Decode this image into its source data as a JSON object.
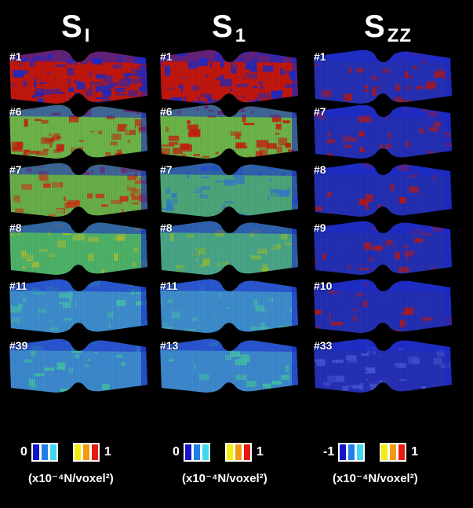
{
  "columns": [
    {
      "title_main": "S",
      "title_sub": "I",
      "slabs": [
        {
          "label": "#1",
          "base": "#c4170e",
          "accent": "#1d2bc8",
          "mix": 0.9
        },
        {
          "label": "#6",
          "base": "#6fb84a",
          "accent": "#c91b0f",
          "mix": 0.55
        },
        {
          "label": "#7",
          "base": "#6bb24b",
          "accent": "#cc3412",
          "mix": 0.45
        },
        {
          "label": "#8",
          "base": "#4fb56a",
          "accent": "#b6c330",
          "mix": 0.35
        },
        {
          "label": "#11",
          "base": "#3f8fd0",
          "accent": "#45c0b0",
          "mix": 0.3
        },
        {
          "label": "#39",
          "base": "#3e8bd1",
          "accent": "#43c3a8",
          "mix": 0.3
        }
      ],
      "legend": {
        "min": "0",
        "max": "1"
      },
      "units": "(x10⁻⁴N/voxel²)"
    },
    {
      "title_main": "S",
      "title_sub": "1",
      "slabs": [
        {
          "label": "#1",
          "base": "#c4170e",
          "accent": "#1d2bc8",
          "mix": 0.9
        },
        {
          "label": "#6",
          "base": "#6fb84a",
          "accent": "#c91b0f",
          "mix": 0.5
        },
        {
          "label": "#7",
          "base": "#4fa97b",
          "accent": "#2f78d6",
          "mix": 0.45
        },
        {
          "label": "#8",
          "base": "#4aa88a",
          "accent": "#8fbe3a",
          "mix": 0.35
        },
        {
          "label": "#11",
          "base": "#3f8fd0",
          "accent": "#45c0b0",
          "mix": 0.3
        },
        {
          "label": "#13",
          "base": "#3e8bd1",
          "accent": "#43c3a8",
          "mix": 0.3
        }
      ],
      "legend": {
        "min": "0",
        "max": "1"
      },
      "units": "(x10⁻⁴N/voxel²)"
    },
    {
      "title_main": "S",
      "title_sub": "ZZ",
      "slabs": [
        {
          "label": "#1",
          "base": "#2631b8",
          "accent": "#b41818",
          "mix": 0.35
        },
        {
          "label": "#7",
          "base": "#2530b8",
          "accent": "#b81a1a",
          "mix": 0.3
        },
        {
          "label": "#8",
          "base": "#2430b6",
          "accent": "#b81a1a",
          "mix": 0.25
        },
        {
          "label": "#9",
          "base": "#2430b6",
          "accent": "#b81a1a",
          "mix": 0.2
        },
        {
          "label": "#10",
          "base": "#2430b6",
          "accent": "#b81a1a",
          "mix": 0.2
        },
        {
          "label": "#33",
          "base": "#2631b8",
          "accent": "#4b58d8",
          "mix": 0.3
        }
      ],
      "legend": {
        "min": "-1",
        "max": "1"
      },
      "units": "(x10⁻⁴N/voxel²)"
    }
  ],
  "legend_colors": {
    "low": [
      "#1515c8",
      "#1f7fe6",
      "#3fd6f0"
    ],
    "high": [
      "#f2ec12",
      "#f39a12",
      "#e81a12"
    ]
  }
}
